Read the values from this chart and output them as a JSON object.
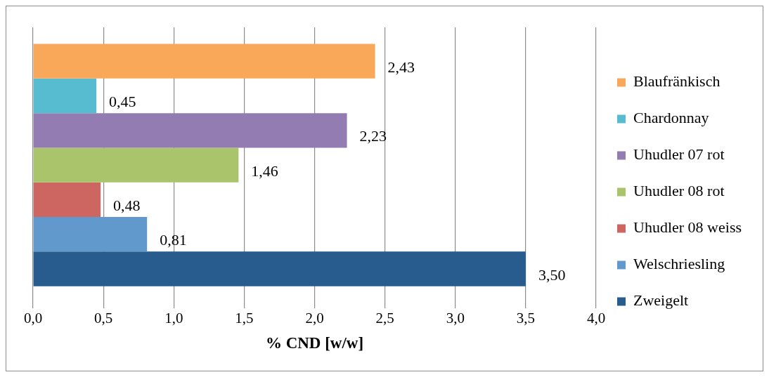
{
  "chart_data": {
    "type": "bar",
    "orientation": "horizontal",
    "xlabel": "% CND [w/w]",
    "categories": [
      null
    ],
    "series": [
      {
        "name": "Blaufränkisch",
        "color": "#f9a85a",
        "values": [
          2.43
        ],
        "value_labels": [
          "2,43"
        ]
      },
      {
        "name": "Chardonnay",
        "color": "#57bccf",
        "values": [
          0.45
        ],
        "value_labels": [
          "0,45"
        ]
      },
      {
        "name": "Uhudler 07 rot",
        "color": "#937cb1",
        "values": [
          2.23
        ],
        "value_labels": [
          "2,23"
        ]
      },
      {
        "name": "Uhudler 08 rot",
        "color": "#a9c46b",
        "values": [
          1.46
        ],
        "value_labels": [
          "1,46"
        ]
      },
      {
        "name": "Uhudler 08 weiss",
        "color": "#cd6661",
        "values": [
          0.48
        ],
        "value_labels": [
          "0,48"
        ]
      },
      {
        "name": "Welschriesling",
        "color": "#6199cc",
        "values": [
          0.81
        ],
        "value_labels": [
          "0,81"
        ]
      },
      {
        "name": "Zweigelt",
        "color": "#285c8e",
        "values": [
          3.5
        ],
        "value_labels": [
          "3,50"
        ]
      }
    ],
    "xlim": [
      0,
      4
    ],
    "xticks": [
      {
        "value": 0,
        "label": "0,0"
      },
      {
        "value": 0.5,
        "label": "0,5"
      },
      {
        "value": 1,
        "label": "1,0"
      },
      {
        "value": 1.5,
        "label": "1,5"
      },
      {
        "value": 2,
        "label": "2,0"
      },
      {
        "value": 2.5,
        "label": "2,5"
      },
      {
        "value": 3,
        "label": "3,0"
      },
      {
        "value": 3.5,
        "label": "3,5"
      },
      {
        "value": 4,
        "label": "4,0"
      }
    ],
    "grid": "x",
    "legend": "right"
  }
}
